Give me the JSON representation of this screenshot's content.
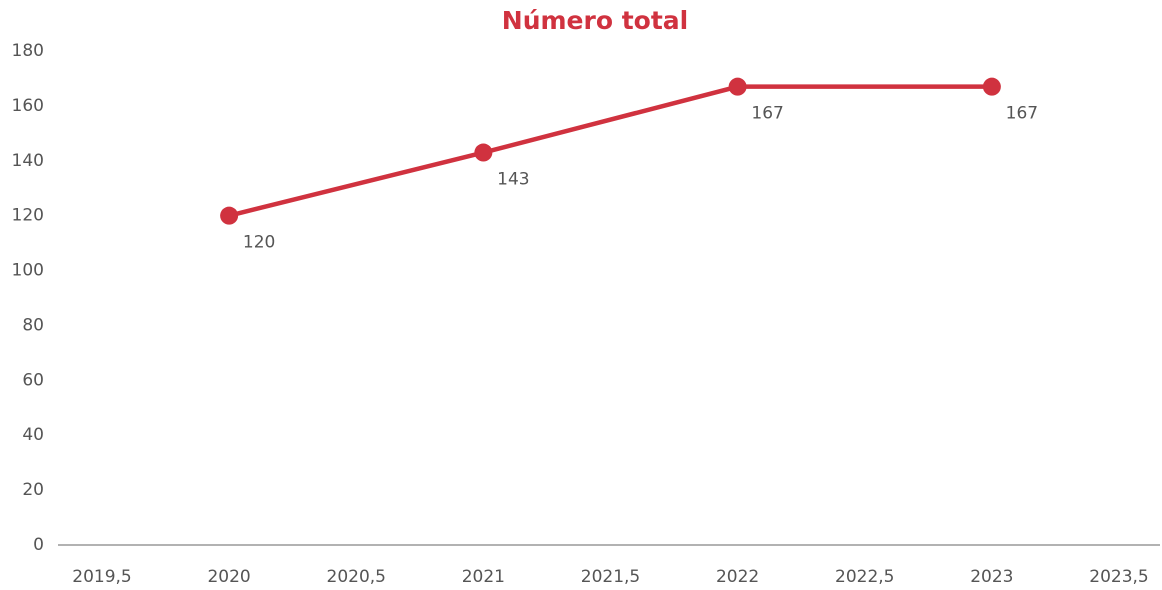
{
  "chart_data": {
    "type": "line",
    "title": "Número total",
    "x": [
      2020,
      2021,
      2022,
      2023
    ],
    "series": [
      {
        "name": "Número total",
        "color": "#d0323f",
        "values": [
          120,
          143,
          167,
          167
        ]
      }
    ],
    "xlim": [
      2019.5,
      2023.5
    ],
    "xticks": [
      {
        "value": 2019.5,
        "label": "2019,5"
      },
      2020,
      {
        "value": 2020.5,
        "label": "2020,5"
      },
      2021,
      {
        "value": 2021.5,
        "label": "2021,5"
      },
      2022,
      {
        "value": 2022.5,
        "label": "2022,5"
      },
      2023,
      {
        "value": 2023.5,
        "label": "2023,5"
      }
    ],
    "ylim": [
      0,
      180
    ],
    "yticks": [
      0,
      20,
      40,
      60,
      80,
      100,
      120,
      140,
      160,
      180
    ],
    "grid": false
  }
}
